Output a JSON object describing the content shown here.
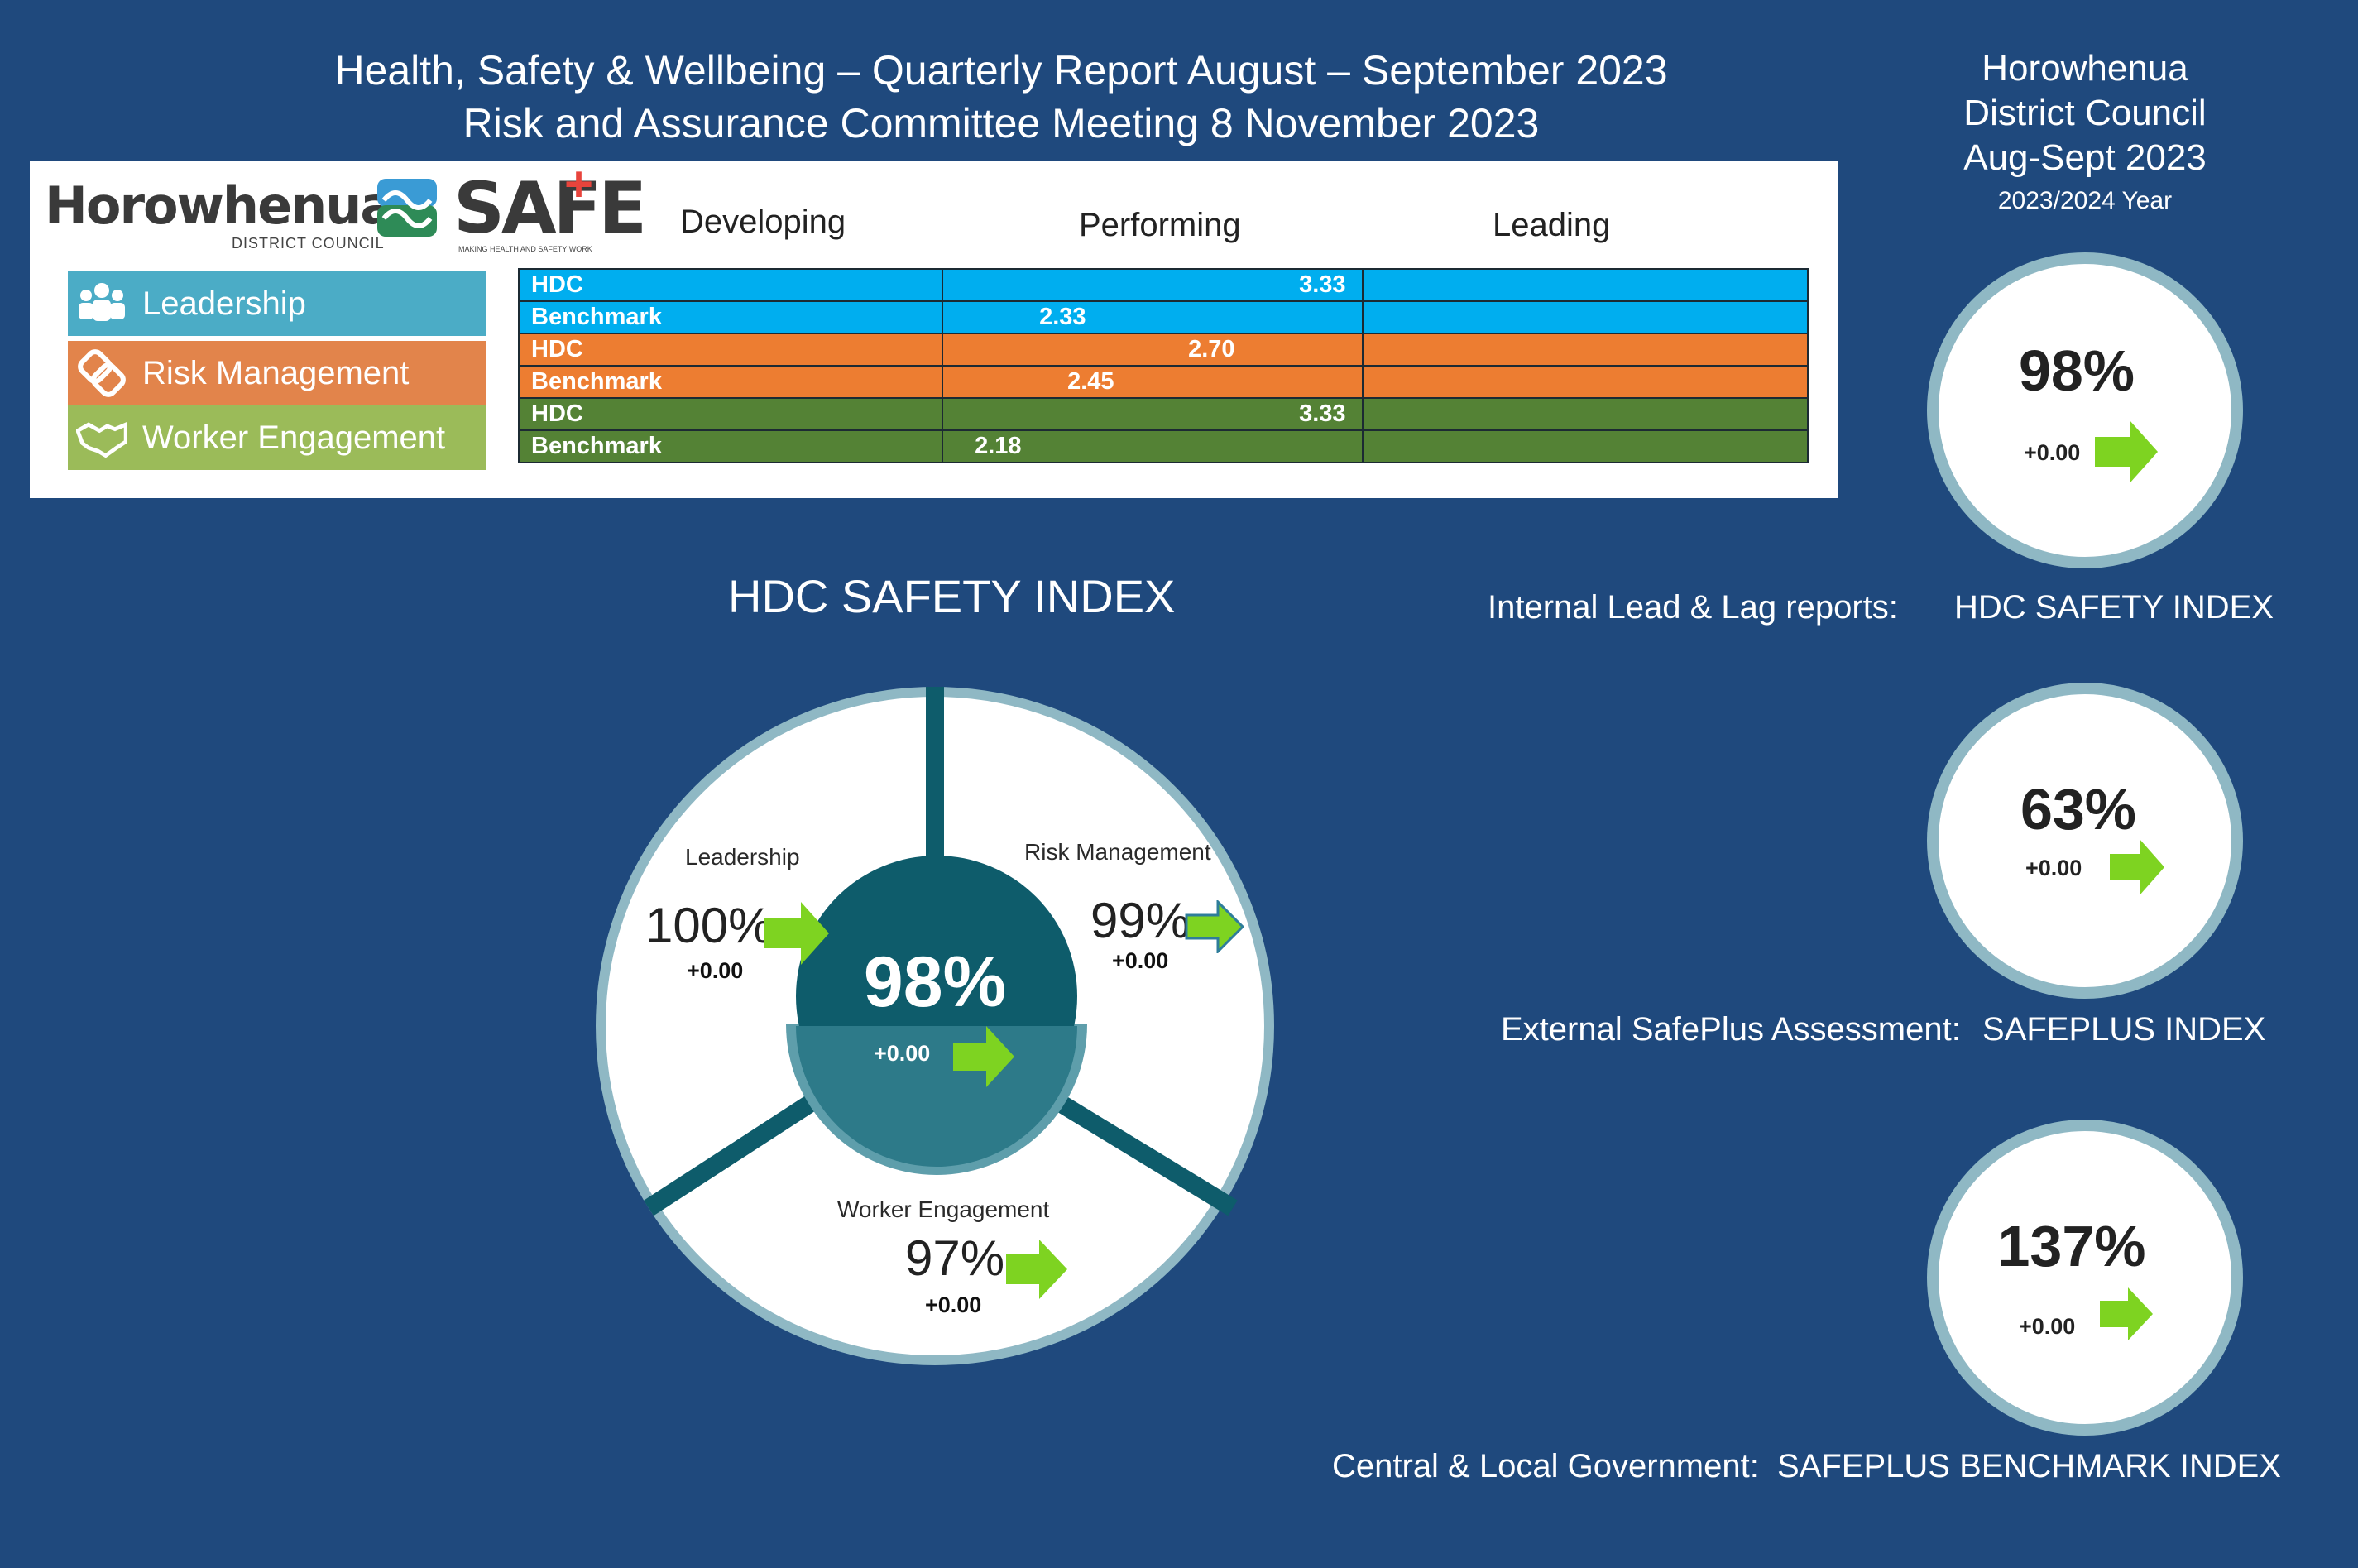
{
  "header": {
    "title_line1": "Health, Safety & Wellbeing – Quarterly Report August – September 2023",
    "title_line2": "Risk and Assurance Committee Meeting 8 November 2023"
  },
  "org": {
    "line1": "Horowhenua",
    "line2": "District Council",
    "line3": "Aug-Sept 2023",
    "year": "2023/2024 Year"
  },
  "logos": {
    "horowhenua_text": "Horowhenua",
    "horowhenua_sub": "DISTRICT COUNCIL",
    "safe_text": "SAFE",
    "safe_plus": "+",
    "safe_sub": "MAKING HEALTH AND SAFETY WORK"
  },
  "scale": {
    "developing": "Developing",
    "performing": "Performing",
    "leading": "Leading"
  },
  "categories": [
    {
      "label": "Leadership",
      "icon": "people-icon",
      "color": "#4bacc6"
    },
    {
      "label": "Risk Management",
      "icon": "chain-link-icon",
      "color": "#e2844b"
    },
    {
      "label": "Worker Engagement",
      "icon": "handshake-icon",
      "color": "#9bbb59"
    }
  ],
  "assessment_rows": [
    {
      "label": "HDC",
      "value": "3.33"
    },
    {
      "label": "Benchmark",
      "value": "2.33"
    },
    {
      "label": "HDC",
      "value": "2.70"
    },
    {
      "label": "Benchmark",
      "value": "2.45"
    },
    {
      "label": "HDC",
      "value": "3.33"
    },
    {
      "label": "Benchmark",
      "value": "2.18"
    }
  ],
  "dial": {
    "title": "HDC SAFETY INDEX",
    "center_pct": "98%",
    "center_delta": "+0.00",
    "leadership": {
      "label": "Leadership",
      "pct": "100%",
      "delta": "+0.00"
    },
    "risk": {
      "label": "Risk Management",
      "pct": "99%",
      "delta": "+0.00"
    },
    "worker": {
      "label": "Worker Engagement",
      "pct": "97%",
      "delta": "+0.00"
    }
  },
  "indices": [
    {
      "pct": "98%",
      "delta": "+0.00",
      "caption_left": "Internal Lead & Lag reports:",
      "caption_right": "HDC SAFETY INDEX"
    },
    {
      "pct": "63%",
      "delta": "+0.00",
      "caption_left": "External SafePlus Assessment:",
      "caption_right": "SAFEPLUS INDEX"
    },
    {
      "pct": "137%",
      "delta": "+0.00",
      "caption_left": "Central & Local Government:",
      "caption_right": "SAFEPLUS BENCHMARK INDEX"
    }
  ],
  "colors": {
    "background": "#1f497d",
    "teal_dark": "#0e5c6b",
    "ring": "#8fb8c4",
    "arrow_green": "#7ed321"
  }
}
